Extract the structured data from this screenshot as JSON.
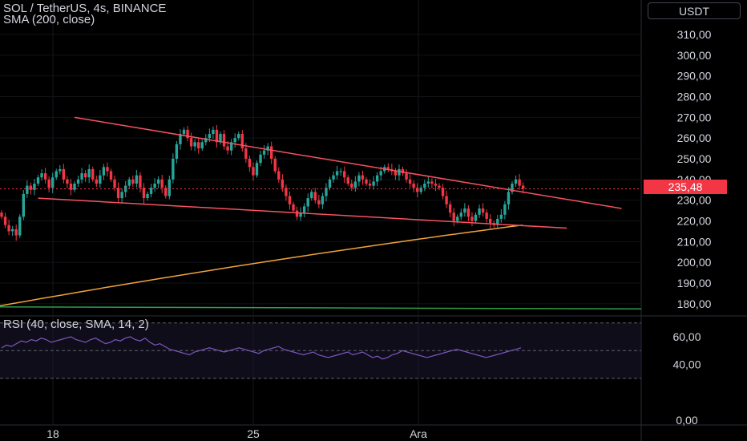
{
  "header": {
    "symbol_line": "SOL / TetherUS, 4s, BINANCE",
    "indicator_line": "SMA (200, close)",
    "rsi_line": "RSI (40, close, SMA, 14, 2)",
    "currency": "USDT"
  },
  "colors": {
    "up": "#26a69a",
    "down": "#f23645",
    "trendline": "#f7525f",
    "sma": "#f0a33a",
    "long_ma": "#2e9e4a",
    "rsi": "#7e57c2",
    "background": "#000000"
  },
  "chart_data": [
    {
      "type": "candlestick",
      "pair": "SOL / TetherUS",
      "interval": "4s",
      "exchange": "BINANCE",
      "ylim": [
        172,
        318
      ],
      "price_ticks": [
        "310,00",
        "300,00",
        "290,00",
        "280,00",
        "270,00",
        "260,00",
        "250,00",
        "240,00",
        "230,00",
        "220,00",
        "210,00",
        "200,00",
        "190,00",
        "180,00"
      ],
      "tick_values": [
        310,
        300,
        290,
        280,
        270,
        260,
        250,
        240,
        230,
        220,
        210,
        200,
        190,
        180
      ],
      "x_labels": [
        "18",
        "25",
        "Ara"
      ],
      "last_price": "235,48",
      "last_price_value": 235.48,
      "closes": [
        222,
        218,
        215,
        216,
        213,
        222,
        233,
        237,
        235,
        238,
        241,
        243,
        240,
        236,
        241,
        244,
        245,
        240,
        238,
        235,
        238,
        240,
        243,
        241,
        245,
        240,
        238,
        242,
        246,
        244,
        240,
        236,
        231,
        234,
        237,
        240,
        238,
        242,
        236,
        231,
        233,
        236,
        238,
        240,
        236,
        232,
        240,
        250,
        257,
        262,
        264,
        260,
        256,
        258,
        255,
        258,
        260,
        262,
        264,
        258,
        262,
        256,
        254,
        258,
        260,
        262,
        255,
        250,
        246,
        242,
        248,
        252,
        254,
        256,
        250,
        244,
        240,
        236,
        232,
        228,
        225,
        222,
        224,
        227,
        231,
        234,
        230,
        228,
        232,
        236,
        240,
        242,
        244,
        244,
        241,
        238,
        236,
        239,
        242,
        240,
        238,
        237,
        239,
        242,
        244,
        246,
        245,
        244,
        242,
        245,
        243,
        240,
        238,
        236,
        234,
        236,
        238,
        239,
        238,
        237,
        236,
        232,
        228,
        224,
        220,
        222,
        224,
        226,
        222,
        220,
        223,
        226,
        224,
        221,
        219,
        218,
        221,
        223,
        228,
        234,
        238,
        240,
        237,
        235.5
      ],
      "sma200": {
        "start": 179,
        "end": 218
      },
      "long_ma": {
        "start": 178.5,
        "end": 177.5
      },
      "trendlines": [
        {
          "name": "upper",
          "from": {
            "candle": 20,
            "price": 270
          },
          "to": {
            "candle": 170,
            "price": 226
          }
        },
        {
          "name": "lower",
          "from": {
            "candle": 10,
            "price": 231
          },
          "to": {
            "candle": 155,
            "price": 216.5
          }
        }
      ]
    },
    {
      "type": "line",
      "name": "RSI (40, close, SMA, 14, 2)",
      "ylim": [
        -20,
        80
      ],
      "ticks": [
        "60,00",
        "40,00",
        "0,00"
      ],
      "tick_values": [
        60,
        40,
        0
      ],
      "band_top": 70,
      "band_mid": 50,
      "band_bottom": 30,
      "values": [
        52,
        54,
        53,
        55,
        57,
        56,
        58,
        57,
        59,
        58,
        56,
        57,
        58,
        59,
        60,
        58,
        57,
        56,
        58,
        59,
        57,
        55,
        56,
        58,
        57,
        59,
        60,
        58,
        57,
        59,
        56,
        54,
        55,
        53,
        51,
        50,
        49,
        48,
        47,
        49,
        50,
        51,
        52,
        51,
        50,
        49,
        50,
        51,
        52,
        51,
        50,
        49,
        48,
        50,
        51,
        52,
        53,
        51,
        50,
        49,
        48,
        47,
        48,
        49,
        47,
        46,
        45,
        46,
        47,
        48,
        49,
        47,
        48,
        49,
        47,
        45,
        46,
        44,
        45,
        47,
        48,
        50,
        49,
        48,
        47,
        46,
        45,
        46,
        47,
        48,
        49,
        50,
        51,
        50,
        49,
        48,
        47,
        46,
        45,
        46,
        47,
        48,
        49,
        50,
        51,
        52
      ]
    }
  ]
}
